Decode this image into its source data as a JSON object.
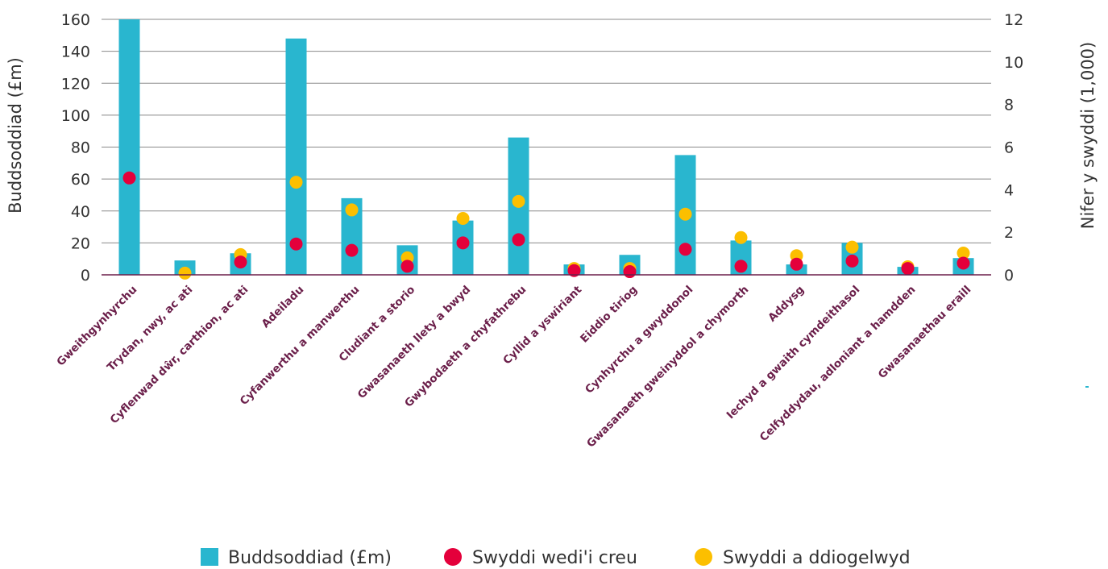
{
  "chart_data": {
    "type": "bar",
    "categories": [
      "Gweithgynhyrchu",
      "Trydan, nwy, ac ati",
      "Cyflenwad dŵr, carthion, ac ati",
      "Adeiladu",
      "Cyfanwerthu a manwerthu",
      "Cludiant a storio",
      "Gwasanaeth llety a bwyd",
      "Gwybodaeth a chyfathrebu",
      "Cyllid a yswiriant",
      "Eiddio tiriog",
      "Cynhyrchu a gwyddonol",
      "Gwasanaeth gweinyddol a chymorth",
      "Addysg",
      "Iechyd a gwaith cymdeithasol",
      "Celfyddydau, adloniant a hamdden",
      "Gwasanaethau eraill"
    ],
    "series": [
      {
        "name": "Buddsoddiad (£m)",
        "axis": "left",
        "kind": "bar",
        "color": "#29b6cf",
        "values": [
          160,
          9,
          13.5,
          148,
          48,
          18.5,
          34,
          86,
          6.5,
          12.5,
          75,
          21.5,
          6.5,
          20,
          5,
          10.5
        ]
      },
      {
        "name": "Swyddi wedi'i creu",
        "axis": "right",
        "kind": "dot",
        "color": "#e4003b",
        "values": [
          4.55,
          null,
          0.6,
          1.45,
          1.15,
          0.4,
          1.5,
          1.65,
          0.2,
          0.15,
          1.2,
          0.4,
          0.5,
          0.65,
          0.3,
          0.55
        ]
      },
      {
        "name": "Swyddi a ddiogelwyd",
        "axis": "right",
        "kind": "dot",
        "color": "#fcbf00",
        "values": [
          null,
          0.08,
          0.95,
          4.35,
          3.05,
          0.8,
          2.65,
          3.45,
          0.3,
          0.3,
          2.85,
          1.75,
          0.9,
          1.3,
          0.38,
          1.02
        ]
      }
    ],
    "ylabel": "Buddsoddiad (£m)",
    "ylabel_right": "Nifer y swyddi (1,000)",
    "ylim": [
      0,
      160
    ],
    "ylim_right": [
      0,
      12
    ],
    "yticks": [
      "0",
      "20",
      "40",
      "60",
      "80",
      "100",
      "120",
      "140",
      "160"
    ],
    "yticks_right": [
      "0",
      "2",
      "4",
      "6",
      "8",
      "10",
      "12"
    ],
    "grid": true,
    "legend": "bottom-center",
    "colors": {
      "bar": "#29b6cf",
      "created": "#e4003b",
      "protected": "#fcbf00",
      "grid": "#8a8a8a",
      "baseline": "#6b1f4a",
      "label": "#6b1f4a"
    }
  }
}
